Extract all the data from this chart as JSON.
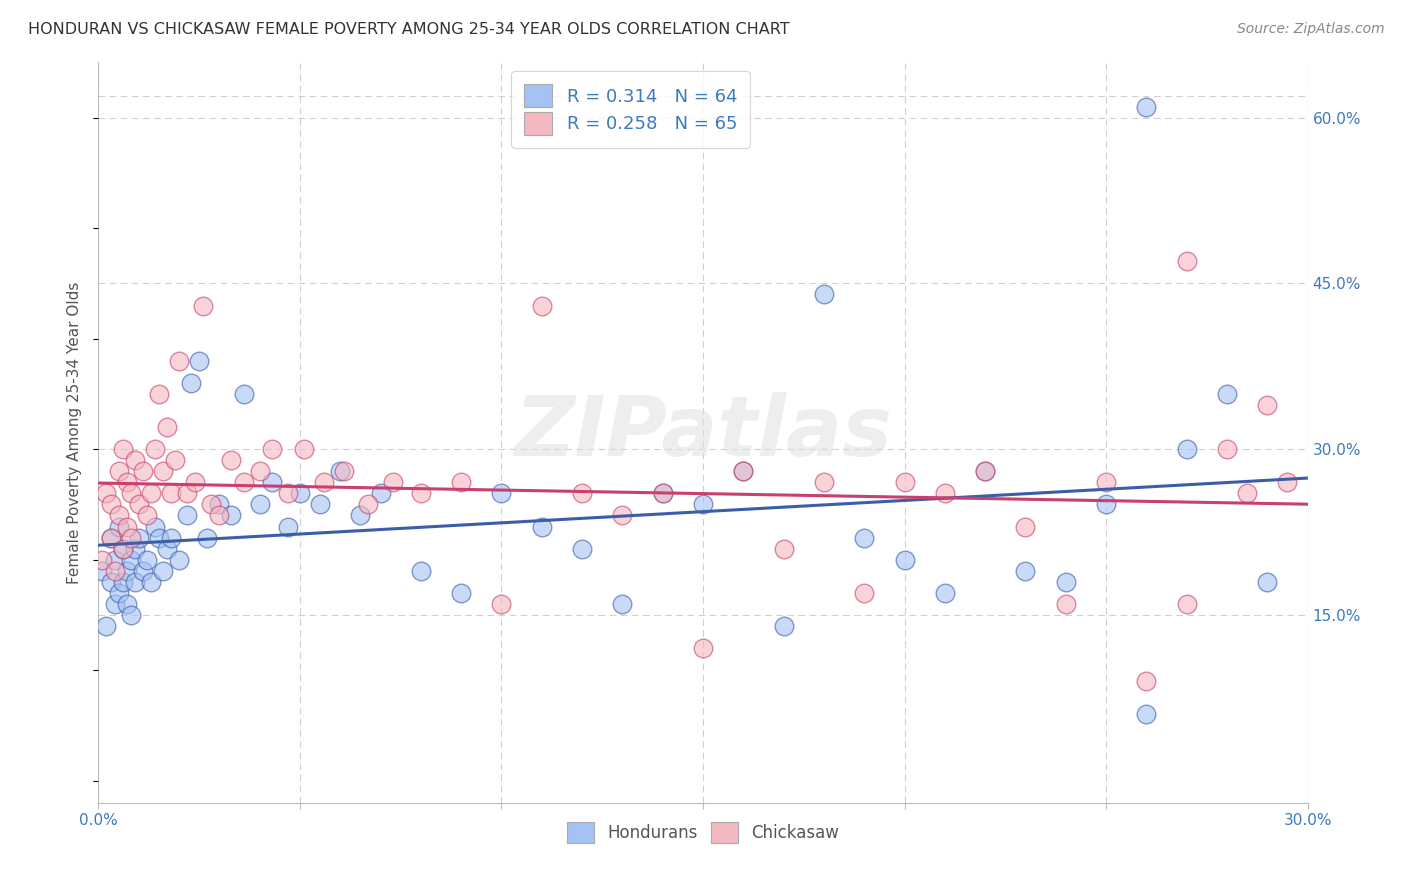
{
  "title": "HONDURAN VS CHICKASAW FEMALE POVERTY AMONG 25-34 YEAR OLDS CORRELATION CHART",
  "source": "Source: ZipAtlas.com",
  "ylabel": "Female Poverty Among 25-34 Year Olds",
  "xlim": [
    0.0,
    0.3
  ],
  "ylim": [
    -0.02,
    0.65
  ],
  "xticks": [
    0.0,
    0.05,
    0.1,
    0.15,
    0.2,
    0.25,
    0.3
  ],
  "xtick_labels": [
    "0.0%",
    "",
    "",
    "",
    "",
    "",
    "30.0%"
  ],
  "yticks_right": [
    0.15,
    0.3,
    0.45,
    0.6
  ],
  "ytick_labels_right": [
    "15.0%",
    "30.0%",
    "45.0%",
    "60.0%"
  ],
  "honduran_color": "#a4c2f4",
  "chickasaw_color": "#f4b8c1",
  "line_honduran_color": "#3c5ea8",
  "line_chickasaw_color": "#c94070",
  "R_honduran": 0.314,
  "N_honduran": 64,
  "R_chickasaw": 0.258,
  "N_chickasaw": 65,
  "legend_label_honduran": "Hondurans",
  "legend_label_chickasaw": "Chickasaw",
  "watermark": "ZIPatlas",
  "background_color": "#ffffff",
  "grid_color": "#d0d0d0",
  "honduran_scatter_x": [
    0.001,
    0.002,
    0.003,
    0.003,
    0.004,
    0.004,
    0.005,
    0.005,
    0.006,
    0.006,
    0.007,
    0.007,
    0.008,
    0.008,
    0.009,
    0.009,
    0.01,
    0.011,
    0.012,
    0.013,
    0.014,
    0.015,
    0.016,
    0.017,
    0.018,
    0.02,
    0.022,
    0.023,
    0.025,
    0.027,
    0.03,
    0.033,
    0.036,
    0.04,
    0.043,
    0.047,
    0.05,
    0.055,
    0.06,
    0.065,
    0.07,
    0.08,
    0.09,
    0.1,
    0.11,
    0.12,
    0.13,
    0.14,
    0.15,
    0.16,
    0.17,
    0.18,
    0.19,
    0.2,
    0.21,
    0.22,
    0.23,
    0.24,
    0.25,
    0.26,
    0.26,
    0.27,
    0.28,
    0.29
  ],
  "honduran_scatter_y": [
    0.19,
    0.14,
    0.18,
    0.22,
    0.16,
    0.2,
    0.17,
    0.23,
    0.18,
    0.21,
    0.16,
    0.19,
    0.2,
    0.15,
    0.21,
    0.18,
    0.22,
    0.19,
    0.2,
    0.18,
    0.23,
    0.22,
    0.19,
    0.21,
    0.22,
    0.2,
    0.24,
    0.36,
    0.38,
    0.22,
    0.25,
    0.24,
    0.35,
    0.25,
    0.27,
    0.23,
    0.26,
    0.25,
    0.28,
    0.24,
    0.26,
    0.19,
    0.17,
    0.26,
    0.23,
    0.21,
    0.16,
    0.26,
    0.25,
    0.28,
    0.14,
    0.44,
    0.22,
    0.2,
    0.17,
    0.28,
    0.19,
    0.18,
    0.25,
    0.06,
    0.61,
    0.3,
    0.35,
    0.18
  ],
  "chickasaw_scatter_x": [
    0.001,
    0.002,
    0.003,
    0.003,
    0.004,
    0.005,
    0.005,
    0.006,
    0.006,
    0.007,
    0.007,
    0.008,
    0.008,
    0.009,
    0.01,
    0.011,
    0.012,
    0.013,
    0.014,
    0.015,
    0.016,
    0.017,
    0.018,
    0.019,
    0.02,
    0.022,
    0.024,
    0.026,
    0.028,
    0.03,
    0.033,
    0.036,
    0.04,
    0.043,
    0.047,
    0.051,
    0.056,
    0.061,
    0.067,
    0.073,
    0.08,
    0.09,
    0.1,
    0.11,
    0.12,
    0.13,
    0.14,
    0.15,
    0.16,
    0.17,
    0.18,
    0.19,
    0.2,
    0.21,
    0.22,
    0.23,
    0.24,
    0.25,
    0.26,
    0.27,
    0.27,
    0.28,
    0.285,
    0.29,
    0.295
  ],
  "chickasaw_scatter_y": [
    0.2,
    0.26,
    0.22,
    0.25,
    0.19,
    0.28,
    0.24,
    0.3,
    0.21,
    0.27,
    0.23,
    0.26,
    0.22,
    0.29,
    0.25,
    0.28,
    0.24,
    0.26,
    0.3,
    0.35,
    0.28,
    0.32,
    0.26,
    0.29,
    0.38,
    0.26,
    0.27,
    0.43,
    0.25,
    0.24,
    0.29,
    0.27,
    0.28,
    0.3,
    0.26,
    0.3,
    0.27,
    0.28,
    0.25,
    0.27,
    0.26,
    0.27,
    0.16,
    0.43,
    0.26,
    0.24,
    0.26,
    0.12,
    0.28,
    0.21,
    0.27,
    0.17,
    0.27,
    0.26,
    0.28,
    0.23,
    0.16,
    0.27,
    0.09,
    0.16,
    0.47,
    0.3,
    0.26,
    0.34,
    0.27
  ]
}
